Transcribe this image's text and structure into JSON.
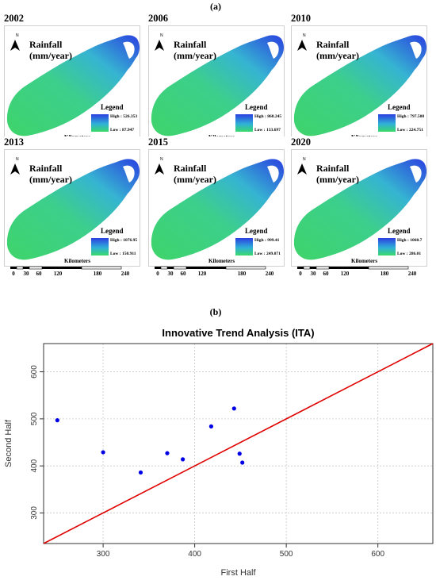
{
  "labels": {
    "a": "(a)",
    "b": "(b)"
  },
  "maps": [
    {
      "year": "2002",
      "title_line1": "Rainfall",
      "title_line2": "(mm/year)",
      "legend": "Legend",
      "high": "High : 526.353",
      "low": "Low : 87.947",
      "km": "Kilometers"
    },
    {
      "year": "2006",
      "title_line1": "Rainfall",
      "title_line2": "(mm/year)",
      "legend": "Legend",
      "high": "High : 868.245",
      "low": "Low : 133.697",
      "km": "Kilometers"
    },
    {
      "year": "2010",
      "title_line1": "Rainfall",
      "title_line2": "(mm/year)",
      "legend": "Legend",
      "high": "High : 797.508",
      "low": "Low : 224.751",
      "km": "Kilometers"
    },
    {
      "year": "2013",
      "title_line1": "Rainfall",
      "title_line2": "(mm/year)",
      "legend": "Legend",
      "high": "High : 1076.95",
      "low": "Low : 150.911",
      "km": "Kilometers"
    },
    {
      "year": "2015",
      "title_line1": "Rainfall",
      "title_line2": "(mm/year)",
      "legend": "Legend",
      "high": "High : 999.41",
      "low": "Low : 249.071",
      "km": "Kilometers"
    },
    {
      "year": "2020",
      "title_line1": "Rainfall",
      "title_line2": "(mm/year)",
      "legend": "Legend",
      "high": "High : 1060.7",
      "low": "Low : 286.01",
      "km": "Kilometers"
    }
  ],
  "scale_ticks": [
    "0",
    "30",
    "60",
    "120",
    "180",
    "240"
  ],
  "north_label": "N",
  "colors": {
    "low": "#39d96a",
    "mid": "#2fb0d8",
    "high": "#2b3fe0",
    "points": "#0000e6",
    "line": "#e00000"
  },
  "chart_data": {
    "type": "scatter",
    "title": "Innovative Trend Analysis (ITA)",
    "xlabel": "First Half",
    "ylabel": "Second Half",
    "xlim": [
      235,
      660
    ],
    "ylim": [
      235,
      660
    ],
    "xticks": [
      300,
      400,
      500,
      600
    ],
    "yticks": [
      300,
      400,
      500,
      600
    ],
    "grid": true,
    "reference_line": "y = x",
    "points": [
      {
        "x": 250,
        "y": 497
      },
      {
        "x": 300,
        "y": 429
      },
      {
        "x": 341,
        "y": 386
      },
      {
        "x": 370,
        "y": 427
      },
      {
        "x": 387,
        "y": 414
      },
      {
        "x": 418,
        "y": 484
      },
      {
        "x": 443,
        "y": 522
      },
      {
        "x": 449,
        "y": 426
      },
      {
        "x": 452,
        "y": 407
      }
    ]
  }
}
